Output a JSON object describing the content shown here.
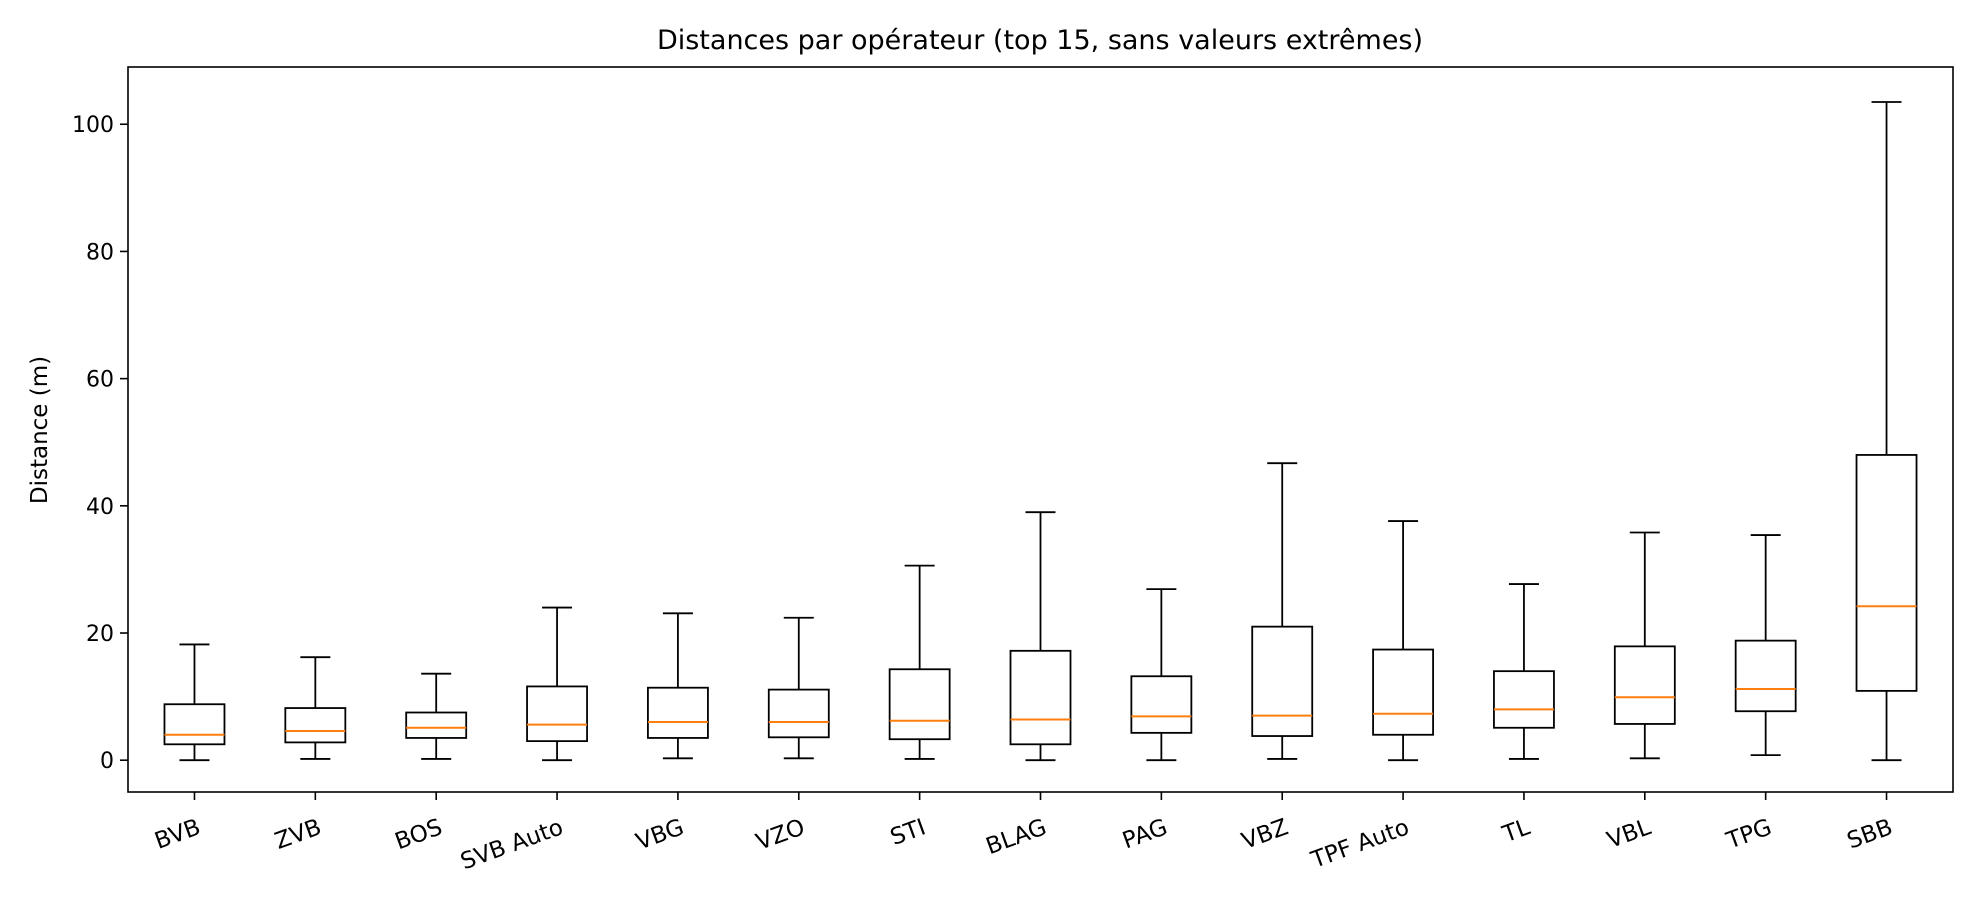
{
  "chart_data": {
    "type": "box",
    "title": "Distances par opérateur (top 15, sans valeurs extrêmes)",
    "xlabel": "",
    "ylabel": "Distance (m)",
    "ylim": [
      -5,
      109
    ],
    "yticks": [
      0,
      20,
      40,
      60,
      80,
      100
    ],
    "grid": false,
    "median_color": "#ff7f0e",
    "box_color": "#000000",
    "categories": [
      "BVB",
      "ZVB",
      "BOS",
      "SVB Auto",
      "VBG",
      "VZO",
      "STI",
      "BLAG",
      "PAG",
      "VBZ",
      "TPF Auto",
      "TL",
      "VBL",
      "TPG",
      "SBB"
    ],
    "boxes": [
      {
        "whisker_low": 0.0,
        "q1": 2.5,
        "median": 4.0,
        "q3": 8.8,
        "whisker_high": 18.2
      },
      {
        "whisker_low": 0.2,
        "q1": 2.8,
        "median": 4.6,
        "q3": 8.2,
        "whisker_high": 16.2
      },
      {
        "whisker_low": 0.2,
        "q1": 3.5,
        "median": 5.1,
        "q3": 7.5,
        "whisker_high": 13.6
      },
      {
        "whisker_low": 0.0,
        "q1": 3.0,
        "median": 5.6,
        "q3": 11.6,
        "whisker_high": 24.0
      },
      {
        "whisker_low": 0.3,
        "q1": 3.5,
        "median": 6.0,
        "q3": 11.4,
        "whisker_high": 23.1
      },
      {
        "whisker_low": 0.3,
        "q1": 3.6,
        "median": 6.0,
        "q3": 11.1,
        "whisker_high": 22.4
      },
      {
        "whisker_low": 0.2,
        "q1": 3.3,
        "median": 6.2,
        "q3": 14.3,
        "whisker_high": 30.6
      },
      {
        "whisker_low": 0.0,
        "q1": 2.5,
        "median": 6.4,
        "q3": 17.2,
        "whisker_high": 39.0
      },
      {
        "whisker_low": 0.0,
        "q1": 4.3,
        "median": 6.9,
        "q3": 13.2,
        "whisker_high": 26.9
      },
      {
        "whisker_low": 0.2,
        "q1": 3.8,
        "median": 7.0,
        "q3": 21.0,
        "whisker_high": 46.7
      },
      {
        "whisker_low": 0.0,
        "q1": 4.0,
        "median": 7.3,
        "q3": 17.4,
        "whisker_high": 37.6
      },
      {
        "whisker_low": 0.2,
        "q1": 5.1,
        "median": 8.0,
        "q3": 14.0,
        "whisker_high": 27.7
      },
      {
        "whisker_low": 0.3,
        "q1": 5.7,
        "median": 9.9,
        "q3": 17.9,
        "whisker_high": 35.8
      },
      {
        "whisker_low": 0.8,
        "q1": 7.7,
        "median": 11.2,
        "q3": 18.8,
        "whisker_high": 35.4
      },
      {
        "whisker_low": 0.0,
        "q1": 10.9,
        "median": 24.2,
        "q3": 48.0,
        "whisker_high": 103.5
      }
    ]
  }
}
